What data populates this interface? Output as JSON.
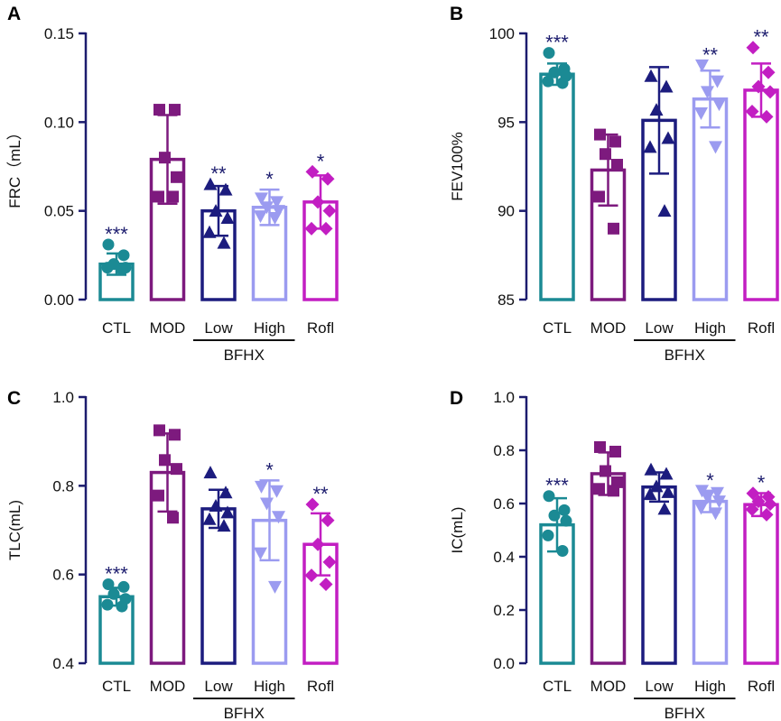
{
  "colors": {
    "CTL": "#1b8a94",
    "MOD": "#7d1a7e",
    "Low": "#1c1c7e",
    "High": "#9b9bf0",
    "Rofl": "#c21ec2",
    "axis": "#1c1c6e",
    "significance": "#1c1c6e"
  },
  "chart_data": [
    {
      "panel": "A",
      "type": "bar",
      "ylabel": "FRC（mL）",
      "ylim": [
        0,
        0.15
      ],
      "yticks": [
        "0.00",
        "0.05",
        "0.10",
        "0.15"
      ],
      "categories": [
        "CTL",
        "MOD",
        "Low",
        "High",
        "Rofl"
      ],
      "group_label": "BFHX",
      "means": [
        0.02,
        0.079,
        0.05,
        0.052,
        0.055
      ],
      "errors": [
        0.006,
        0.025,
        0.014,
        0.01,
        0.015
      ],
      "significance": [
        "***",
        "",
        "**",
        "*",
        "*"
      ],
      "points": [
        [
          0.031,
          0.025,
          0.02,
          0.018,
          0.018,
          0.017
        ],
        [
          0.107,
          0.107,
          0.08,
          0.069,
          0.058,
          0.058
        ],
        [
          0.065,
          0.062,
          0.05,
          0.046,
          0.038,
          0.032
        ],
        [
          0.057,
          0.055,
          0.052,
          0.05,
          0.047,
          0.046
        ],
        [
          0.072,
          0.068,
          0.055,
          0.05,
          0.04,
          0.04
        ]
      ]
    },
    {
      "panel": "B",
      "type": "bar",
      "ylabel": "FEV100%",
      "ylim": [
        85,
        100
      ],
      "yticks": [
        "85",
        "90",
        "95",
        "100"
      ],
      "categories": [
        "CTL",
        "MOD",
        "Low",
        "High",
        "Rofl"
      ],
      "group_label": "BFHX",
      "means": [
        97.7,
        92.3,
        95.1,
        96.3,
        96.8
      ],
      "errors": [
        0.6,
        2.0,
        3.0,
        1.6,
        1.5
      ],
      "significance": [
        "***",
        "",
        "",
        "**",
        "**"
      ],
      "points": [
        [
          98.9,
          98.0,
          97.8,
          97.6,
          97.3,
          97.2
        ],
        [
          94.3,
          93.9,
          93.2,
          92.6,
          90.8,
          89.0
        ],
        [
          97.6,
          97.0,
          95.7,
          94.1,
          93.6,
          90.0
        ],
        [
          98.2,
          97.3,
          96.7,
          96.0,
          95.5,
          93.6
        ],
        [
          99.2,
          97.8,
          97.0,
          96.7,
          95.6,
          95.3
        ]
      ]
    },
    {
      "panel": "C",
      "type": "bar",
      "ylabel": "TLC(mL)",
      "ylim": [
        0.4,
        1.0
      ],
      "yticks": [
        "0.4",
        "0.6",
        "0.8",
        "1.0"
      ],
      "categories": [
        "CTL",
        "MOD",
        "Low",
        "High",
        "Rofl"
      ],
      "group_label": "BFHX",
      "means": [
        0.55,
        0.83,
        0.748,
        0.722,
        0.668
      ],
      "errors": [
        0.02,
        0.088,
        0.043,
        0.09,
        0.07
      ],
      "significance": [
        "***",
        "",
        "",
        "*",
        "**"
      ],
      "points": [
        [
          0.578,
          0.572,
          0.556,
          0.545,
          0.532,
          0.528
        ],
        [
          0.925,
          0.915,
          0.858,
          0.838,
          0.778,
          0.728
        ],
        [
          0.83,
          0.785,
          0.755,
          0.74,
          0.725,
          0.71
        ],
        [
          0.798,
          0.788,
          0.76,
          0.73,
          0.648,
          0.572
        ],
        [
          0.758,
          0.722,
          0.668,
          0.628,
          0.598,
          0.578
        ]
      ]
    },
    {
      "panel": "D",
      "type": "bar",
      "ylabel": "IC(mL)",
      "ylim": [
        0,
        1.0
      ],
      "yticks": [
        "0.0",
        "0.2",
        "0.4",
        "0.6",
        "0.8",
        "1.0"
      ],
      "categories": [
        "CTL",
        "MOD",
        "Low",
        "High",
        "Rofl"
      ],
      "group_label": "BFHX",
      "means": [
        0.52,
        0.712,
        0.662,
        0.608,
        0.596
      ],
      "errors": [
        0.1,
        0.08,
        0.055,
        0.04,
        0.043
      ],
      "significance": [
        "***",
        "",
        "",
        "*",
        "*"
      ],
      "points": [
        [
          0.628,
          0.575,
          0.555,
          0.535,
          0.48,
          0.422
        ],
        [
          0.812,
          0.795,
          0.722,
          0.68,
          0.655,
          0.648
        ],
        [
          0.728,
          0.712,
          0.665,
          0.643,
          0.635,
          0.58
        ],
        [
          0.648,
          0.64,
          0.623,
          0.608,
          0.583,
          0.563
        ],
        [
          0.638,
          0.625,
          0.608,
          0.598,
          0.578,
          0.558
        ]
      ]
    }
  ]
}
